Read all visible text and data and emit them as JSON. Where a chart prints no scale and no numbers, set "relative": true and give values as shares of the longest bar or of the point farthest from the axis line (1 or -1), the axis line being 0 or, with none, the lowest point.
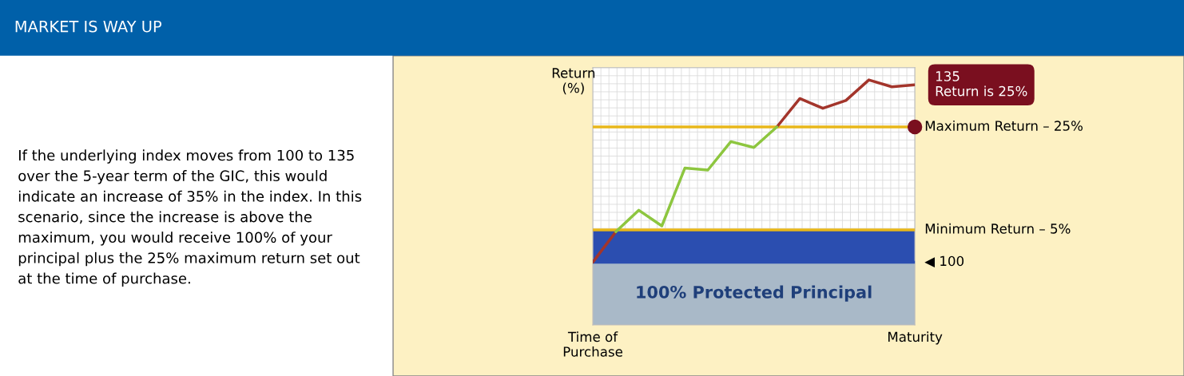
{
  "chart_data": {
    "type": "line",
    "title": "MARKET IS WAY UP",
    "ylabel": "Return\n(%)",
    "relative": true,
    "categories": [
      "Time of\nPurchase",
      null,
      null,
      null,
      null,
      null,
      null,
      null,
      null,
      null,
      null,
      null,
      null,
      null,
      "Maturity"
    ],
    "series": [
      {
        "color": "#a3352b",
        "values": [
          0.256,
          0.38,
          null,
          null,
          null,
          null,
          null,
          null,
          0.808,
          0.924,
          0.884,
          0.916,
          1,
          0.972,
          0.98
        ]
      },
      {
        "color": "#8dc63f",
        "values": [
          null,
          0.38,
          0.468,
          0.404,
          0.64,
          0.632,
          0.748,
          0.724,
          0.808,
          null,
          null,
          null,
          null,
          null,
          null
        ]
      }
    ],
    "ref_lines": [
      {
        "axis": "y",
        "value": 0.808,
        "label": "Maximum Return – 25%",
        "color": "#e8b71a"
      },
      {
        "axis": "y",
        "value": 0.388,
        "label": "Minimum Return – 5%",
        "color": "#e8b71a"
      },
      {
        "axis": "y",
        "value": 0.256,
        "label": "◀ 100",
        "color": "#2b4eb0"
      }
    ],
    "bands": [
      {
        "axis": "y",
        "from": 0,
        "to": 0.256,
        "label": "100% Protected Principal",
        "color": "#a9b9c8"
      },
      {
        "axis": "y",
        "from": 0.256,
        "to": 0.388,
        "color": "#2b4eb0"
      }
    ],
    "annotations": [
      "If the underlying index moves from 100 to 135 over the 5-year term of the GIC, this would indicate an increase of 35% in the index. In this scenario, since the increase is above the maximum, you would receive 100% of your principal plus the 25% maximum return set out at the time of purchase.",
      "135\nReturn is 25%"
    ],
    "grid": true,
    "marker": "none",
    "line_style": "solid"
  }
}
